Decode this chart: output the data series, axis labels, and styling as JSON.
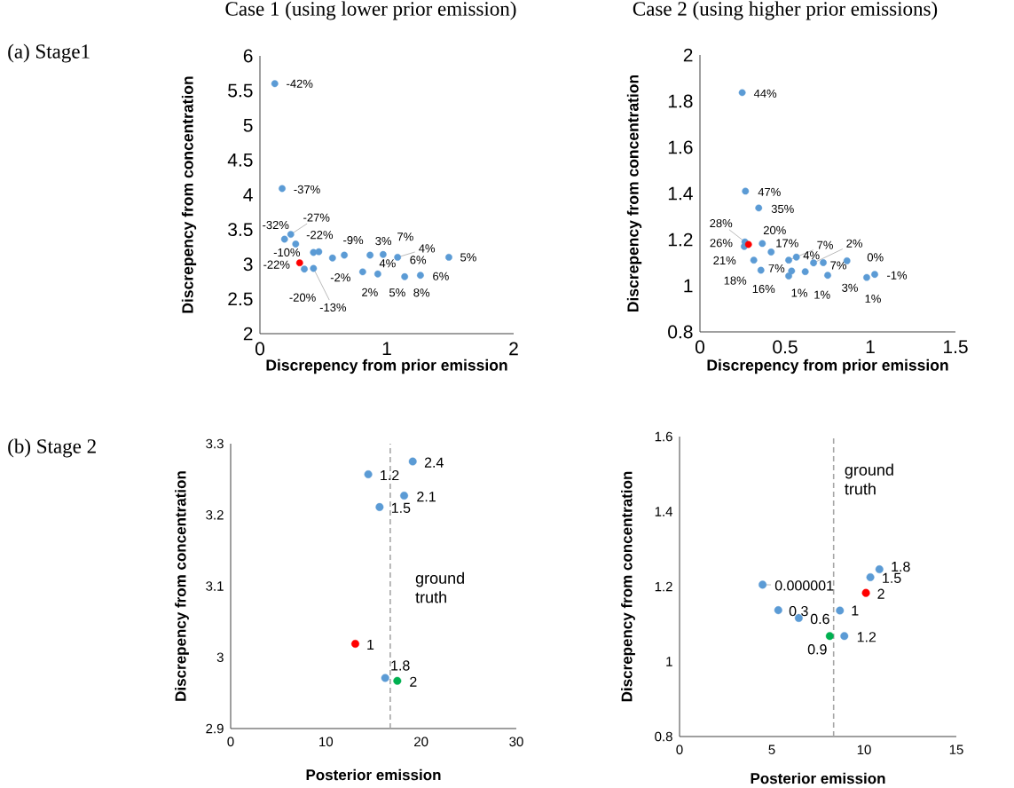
{
  "chart_data": [
    {
      "type": "scatter",
      "title": "Case 1 (using lower prior emission)",
      "xlabel": "Discrepency from prior emission",
      "ylabel": "Discrepency from concentration",
      "marker": "circle",
      "x": [
        0.117,
        0.175,
        0.194,
        0.243,
        0.282,
        0.422,
        0.464,
        0.572,
        0.665,
        0.868,
        0.971,
        0.975,
        1.085,
        1.09,
        1.489,
        0.313,
        0.35,
        0.422,
        0.81,
        0.929,
        1.141,
        1.265
      ],
      "values": [
        5.6,
        4.09,
        3.36,
        3.43,
        3.29,
        3.17,
        3.18,
        3.09,
        3.13,
        3.13,
        3.14,
        null,
        3.1,
        null,
        3.1,
        3.02,
        2.93,
        2.94,
        2.89,
        2.86,
        2.82,
        2.84
      ],
      "colors": [
        "#5b9bd5",
        "#5b9bd5",
        "#5b9bd5",
        "#5b9bd5",
        "#5b9bd5",
        "#5b9bd5",
        "#5b9bd5",
        "#5b9bd5",
        "#5b9bd5",
        "#5b9bd5",
        "#5b9bd5",
        "#5b9bd5",
        "#5b9bd5",
        "#5b9bd5",
        "#5b9bd5",
        "#ff0000",
        "#5b9bd5",
        "#5b9bd5",
        "#5b9bd5",
        "#5b9bd5",
        "#5b9bd5",
        "#5b9bd5"
      ],
      "annotations": [
        "(a) Stage1",
        {
          "text": "-42%",
          "x": 0.117,
          "y": 5.6
        },
        {
          "text": "-37%",
          "x": 0.175,
          "y": 4.09
        },
        {
          "text": "-32%",
          "x": 0.194,
          "y": 3.36
        },
        {
          "text": "-27%",
          "x": 0.243,
          "y": 3.43
        },
        {
          "text": "-10%",
          "x": 0.422,
          "y": 3.17
        },
        {
          "text": "-22%",
          "x": 0.464,
          "y": 3.18
        },
        {
          "text": "-2%",
          "x": 0.572,
          "y": 3.09
        },
        {
          "text": "-9%",
          "x": 0.665,
          "y": 3.13
        },
        {
          "text": "3%",
          "x": 0.868,
          "y": 3.13
        },
        {
          "text": "7%",
          "x": 0.971,
          "y": 3.14
        },
        {
          "text": "4%",
          "x": 0.971,
          "y": 3.14
        },
        {
          "text": "4%",
          "x": 1.085,
          "y": 3.1
        },
        {
          "text": "6%",
          "x": 1.085,
          "y": 3.1
        },
        {
          "text": "5%",
          "x": 1.489,
          "y": 3.1
        },
        {
          "text": "-22%",
          "x": 0.313,
          "y": 3.02
        },
        {
          "text": "-20%",
          "x": 0.35,
          "y": 2.93
        },
        {
          "text": "-13%",
          "x": 0.422,
          "y": 2.94
        },
        {
          "text": "2%",
          "x": 0.81,
          "y": 2.89
        },
        {
          "text": "5%",
          "x": 0.929,
          "y": 2.86
        },
        {
          "text": "8%",
          "x": 1.141,
          "y": 2.82
        },
        {
          "text": "6%",
          "x": 1.265,
          "y": 2.84
        }
      ],
      "xlim": [
        0,
        2
      ],
      "ylim": [
        2,
        6
      ],
      "xticks": [
        0,
        1,
        2
      ],
      "yticks": [
        2,
        2.5,
        3,
        3.5,
        4,
        4.5,
        5,
        5.5,
        6
      ]
    },
    {
      "type": "scatter",
      "title": "Case 2 (using higher prior emissions)",
      "xlabel": "Discrepency from prior emission",
      "ylabel": "Discrepency from concentration",
      "marker": "circle",
      "x": [
        0.248,
        0.267,
        0.345,
        0.264,
        0.26,
        0.285,
        0.366,
        0.418,
        0.316,
        0.358,
        0.521,
        0.566,
        0.538,
        0.521,
        0.618,
        0.667,
        0.724,
        0.75,
        0.863,
        0.979,
        1.026
      ],
      "values": [
        1.837,
        1.41,
        1.337,
        1.19,
        1.17,
        1.179,
        1.183,
        1.146,
        1.111,
        1.067,
        1.111,
        1.124,
        1.064,
        1.042,
        1.061,
        1.099,
        1.1,
        1.045,
        1.108,
        1.036,
        1.049
      ],
      "colors": [
        "#5b9bd5",
        "#5b9bd5",
        "#5b9bd5",
        "#5b9bd5",
        "#5b9bd5",
        "#ff0000",
        "#5b9bd5",
        "#5b9bd5",
        "#5b9bd5",
        "#5b9bd5",
        "#5b9bd5",
        "#5b9bd5",
        "#5b9bd5",
        "#5b9bd5",
        "#5b9bd5",
        "#5b9bd5",
        "#5b9bd5",
        "#5b9bd5",
        "#5b9bd5",
        "#5b9bd5",
        "#5b9bd5"
      ],
      "annotations": [
        {
          "text": "44%",
          "x": 0.248,
          "y": 1.837
        },
        {
          "text": "47%",
          "x": 0.267,
          "y": 1.41
        },
        {
          "text": "35%",
          "x": 0.345,
          "y": 1.337
        },
        {
          "text": "28%",
          "x": 0.264,
          "y": 1.19
        },
        {
          "text": "26%",
          "x": 0.26,
          "y": 1.17
        },
        {
          "text": "21%",
          "x": 0.285,
          "y": 1.179
        },
        {
          "text": "20%",
          "x": 0.366,
          "y": 1.183
        },
        {
          "text": "17%",
          "x": 0.418,
          "y": 1.146
        },
        {
          "text": "18%",
          "x": 0.316,
          "y": 1.111
        },
        {
          "text": "16%",
          "x": 0.358,
          "y": 1.067
        },
        {
          "text": "7%",
          "x": 0.521,
          "y": 1.111
        },
        {
          "text": "4%",
          "x": 0.566,
          "y": 1.124
        },
        {
          "text": "7%",
          "x": 0.538,
          "y": 1.064
        },
        {
          "text": "1%",
          "x": 0.521,
          "y": 1.042
        },
        {
          "text": "1%",
          "x": 0.618,
          "y": 1.061
        },
        {
          "text": "2%",
          "x": 0.667,
          "y": 1.099
        },
        {
          "text": "7%",
          "x": 0.724,
          "y": 1.1
        },
        {
          "text": "3%",
          "x": 0.75,
          "y": 1.045
        },
        {
          "text": "0%",
          "x": 0.863,
          "y": 1.108
        },
        {
          "text": "1%",
          "x": 0.979,
          "y": 1.036
        },
        {
          "text": "-1%",
          "x": 1.026,
          "y": 1.049
        }
      ],
      "xlim": [
        0,
        1.5
      ],
      "ylim": [
        0.8,
        2
      ],
      "xticks": [
        0,
        0.5,
        1,
        1.5
      ],
      "yticks": [
        0.8,
        1,
        1.2,
        1.4,
        1.6,
        1.8,
        2
      ]
    },
    {
      "type": "scatter",
      "xlabel": "Posterior emission",
      "ylabel": "Discrepency from concentration",
      "marker": "circle",
      "x": [
        19.12,
        14.45,
        18.22,
        15.64,
        13.09,
        16.23,
        17.5
      ],
      "values": [
        3.275,
        3.257,
        3.227,
        3.211,
        3.019,
        2.971,
        2.967
      ],
      "colors": [
        "#5b9bd5",
        "#5b9bd5",
        "#5b9bd5",
        "#5b9bd5",
        "#ff0000",
        "#5b9bd5",
        "#00b050"
      ],
      "annotations": [
        "(b) Stage 2",
        {
          "text": "2.4",
          "x": 19.12,
          "y": 3.275
        },
        {
          "text": "1.2",
          "x": 14.45,
          "y": 3.257
        },
        {
          "text": "2.1",
          "x": 18.22,
          "y": 3.227
        },
        {
          "text": "1.5",
          "x": 15.64,
          "y": 3.211
        },
        {
          "text": "1",
          "x": 13.09,
          "y": 3.019
        },
        {
          "text": "1.8",
          "x": 16.23,
          "y": 2.971
        },
        {
          "text": "2",
          "x": 17.5,
          "y": 2.967
        }
      ],
      "ref_lines": [
        {
          "axis": "x",
          "value": 16.76,
          "label": "ground truth",
          "color": "#a6a6a6",
          "line_style": "dashed"
        }
      ],
      "xlim": [
        0,
        30
      ],
      "ylim": [
        2.9,
        3.3
      ],
      "xticks": [
        0,
        10,
        20,
        30
      ],
      "yticks": [
        2.9,
        3,
        3.1,
        3.2,
        3.3
      ]
    },
    {
      "type": "scatter",
      "xlabel": "Posterior emission",
      "ylabel": "Discrepency from concentration",
      "marker": "circle",
      "x": [
        4.5,
        5.35,
        6.46,
        8.69,
        8.93,
        8.14,
        10.1,
        10.34,
        10.83
      ],
      "values": [
        1.205,
        1.137,
        1.116,
        1.136,
        1.068,
        1.068,
        1.183,
        1.225,
        1.246
      ],
      "colors": [
        "#5b9bd5",
        "#5b9bd5",
        "#5b9bd5",
        "#5b9bd5",
        "#5b9bd5",
        "#00b050",
        "#ff0000",
        "#5b9bd5",
        "#5b9bd5"
      ],
      "annotations": [
        {
          "text": "0.000001",
          "x": 4.5,
          "y": 1.205
        },
        {
          "text": "0.3",
          "x": 5.35,
          "y": 1.137
        },
        {
          "text": "0.6",
          "x": 6.46,
          "y": 1.116
        },
        {
          "text": "1",
          "x": 8.69,
          "y": 1.136
        },
        {
          "text": "1.2",
          "x": 8.93,
          "y": 1.068
        },
        {
          "text": "0.9",
          "x": 8.14,
          "y": 1.068
        },
        {
          "text": "2",
          "x": 10.1,
          "y": 1.183
        },
        {
          "text": "1.5",
          "x": 10.34,
          "y": 1.225
        },
        {
          "text": "1.8",
          "x": 10.83,
          "y": 1.246
        }
      ],
      "ref_lines": [
        {
          "axis": "x",
          "value": 8.35,
          "label": "ground truth",
          "color": "#a6a6a6",
          "line_style": "dashed"
        }
      ],
      "xlim": [
        0,
        15
      ],
      "ylim": [
        0.8,
        1.6
      ],
      "xticks": [
        0,
        5,
        10,
        15
      ],
      "yticks": [
        0.8,
        1,
        1.2,
        1.4,
        1.6
      ]
    }
  ]
}
